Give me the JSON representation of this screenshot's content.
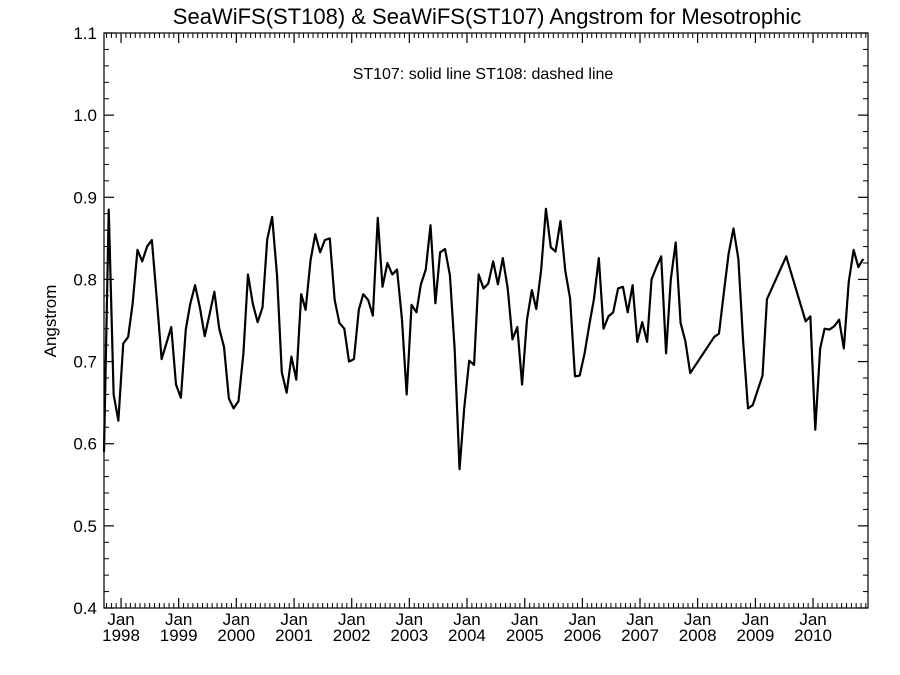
{
  "chart_data": {
    "type": "line",
    "title": "SeaWiFS(ST108) & SeaWiFS(ST107)  Angstrom for Mesotrophic",
    "annotation": "ST107: solid line   ST108: dashed line",
    "ylabel": "Angstrom",
    "xlabel": "",
    "ylim": [
      0.4,
      1.1
    ],
    "xlim": [
      "1997-09-15",
      "2010-12-15"
    ],
    "y_ticks": [
      "0.4",
      "0.5",
      "0.6",
      "0.7",
      "0.8",
      "0.9",
      "1.0",
      "1.1"
    ],
    "x_ticks": [
      {
        "month": "Jan",
        "year": "1998",
        "date": "1998-01-01"
      },
      {
        "month": "Jan",
        "year": "1999",
        "date": "1999-01-01"
      },
      {
        "month": "Jan",
        "year": "2000",
        "date": "2000-01-01"
      },
      {
        "month": "Jan",
        "year": "2001",
        "date": "2001-01-01"
      },
      {
        "month": "Jan",
        "year": "2002",
        "date": "2002-01-01"
      },
      {
        "month": "Jan",
        "year": "2003",
        "date": "2003-01-01"
      },
      {
        "month": "Jan",
        "year": "2004",
        "date": "2004-01-01"
      },
      {
        "month": "Jan",
        "year": "2005",
        "date": "2005-01-01"
      },
      {
        "month": "Jan",
        "year": "2006",
        "date": "2006-01-01"
      },
      {
        "month": "Jan",
        "year": "2007",
        "date": "2007-01-01"
      },
      {
        "month": "Jan",
        "year": "2008",
        "date": "2008-01-01"
      },
      {
        "month": "Jan",
        "year": "2009",
        "date": "2009-01-01"
      },
      {
        "month": "Jan",
        "year": "2010",
        "date": "2010-01-01"
      }
    ],
    "grid": false,
    "series": [
      {
        "line_style": "solid",
        "points": [
          [
            "1997-09",
            0.59
          ],
          [
            "1997-10",
            0.885
          ],
          [
            "1997-11",
            0.66
          ],
          [
            "1997-12",
            0.628
          ],
          [
            "1998-01",
            0.722
          ],
          [
            "1998-02",
            0.73
          ],
          [
            "1998-03",
            0.77
          ],
          [
            "1998-04",
            0.836
          ],
          [
            "1998-05",
            0.822
          ],
          [
            "1998-06",
            0.84
          ],
          [
            "1998-07",
            0.848
          ],
          [
            "1998-08",
            0.777
          ],
          [
            "1998-09",
            0.703
          ],
          [
            "1998-10",
            0.722
          ],
          [
            "1998-11",
            0.742
          ],
          [
            "1998-12",
            0.672
          ],
          [
            "1999-01",
            0.656
          ],
          [
            "1999-02",
            0.739
          ],
          [
            "1999-03",
            0.77
          ],
          [
            "1999-04",
            0.793
          ],
          [
            "1999-05",
            0.766
          ],
          [
            "1999-06",
            0.731
          ],
          [
            "1999-07",
            0.757
          ],
          [
            "1999-08",
            0.785
          ],
          [
            "1999-09",
            0.74
          ],
          [
            "1999-10",
            0.718
          ],
          [
            "1999-11",
            0.655
          ],
          [
            "1999-12",
            0.643
          ],
          [
            "2000-01",
            0.652
          ],
          [
            "2000-02",
            0.71
          ],
          [
            "2000-03",
            0.806
          ],
          [
            "2000-04",
            0.77
          ],
          [
            "2000-05",
            0.748
          ],
          [
            "2000-06",
            0.766
          ],
          [
            "2000-07",
            0.849
          ],
          [
            "2000-08",
            0.876
          ],
          [
            "2000-09",
            0.805
          ],
          [
            "2000-10",
            0.687
          ],
          [
            "2000-11",
            0.662
          ],
          [
            "2000-12",
            0.706
          ],
          [
            "2001-01",
            0.678
          ],
          [
            "2001-02",
            0.782
          ],
          [
            "2001-03",
            0.763
          ],
          [
            "2001-04",
            0.823
          ],
          [
            "2001-05",
            0.855
          ],
          [
            "2001-06",
            0.833
          ],
          [
            "2001-07",
            0.848
          ],
          [
            "2001-08",
            0.85
          ],
          [
            "2001-09",
            0.775
          ],
          [
            "2001-10",
            0.747
          ],
          [
            "2001-11",
            0.74
          ],
          [
            "2001-12",
            0.7
          ],
          [
            "2002-01",
            0.703
          ],
          [
            "2002-02",
            0.763
          ],
          [
            "2002-03",
            0.782
          ],
          [
            "2002-04",
            0.775
          ],
          [
            "2002-05",
            0.756
          ],
          [
            "2002-06",
            0.875
          ],
          [
            "2002-07",
            0.791
          ],
          [
            "2002-08",
            0.82
          ],
          [
            "2002-09",
            0.806
          ],
          [
            "2002-10",
            0.812
          ],
          [
            "2002-11",
            0.752
          ],
          [
            "2002-12",
            0.66
          ],
          [
            "2003-01",
            0.769
          ],
          [
            "2003-02",
            0.76
          ],
          [
            "2003-03",
            0.794
          ],
          [
            "2003-04",
            0.812
          ],
          [
            "2003-05",
            0.866
          ],
          [
            "2003-06",
            0.771
          ],
          [
            "2003-07",
            0.833
          ],
          [
            "2003-08",
            0.837
          ],
          [
            "2003-09",
            0.805
          ],
          [
            "2003-10",
            0.715
          ],
          [
            "2003-11",
            0.569
          ],
          [
            "2003-12",
            0.644
          ],
          [
            "2004-01",
            0.701
          ],
          [
            "2004-02",
            0.696
          ],
          [
            "2004-03",
            0.806
          ],
          [
            "2004-04",
            0.789
          ],
          [
            "2004-05",
            0.795
          ],
          [
            "2004-06",
            0.822
          ],
          [
            "2004-07",
            0.794
          ],
          [
            "2004-08",
            0.826
          ],
          [
            "2004-09",
            0.789
          ],
          [
            "2004-10",
            0.727
          ],
          [
            "2004-11",
            0.742
          ],
          [
            "2004-12",
            0.672
          ],
          [
            "2005-01",
            0.751
          ],
          [
            "2005-02",
            0.787
          ],
          [
            "2005-03",
            0.764
          ],
          [
            "2005-04",
            0.812
          ],
          [
            "2005-05",
            0.886
          ],
          [
            "2005-06",
            0.839
          ],
          [
            "2005-07",
            0.834
          ],
          [
            "2005-08",
            0.871
          ],
          [
            "2005-09",
            0.81
          ],
          [
            "2005-10",
            0.777
          ],
          [
            "2005-11",
            0.682
          ],
          [
            "2005-12",
            0.683
          ],
          [
            "2006-01",
            0.71
          ],
          [
            "2006-02",
            0.746
          ],
          [
            "2006-03",
            0.776
          ],
          [
            "2006-04",
            0.826
          ],
          [
            "2006-05",
            0.74
          ],
          [
            "2006-06",
            0.755
          ],
          [
            "2006-07",
            0.76
          ],
          [
            "2006-08",
            0.789
          ],
          [
            "2006-09",
            0.791
          ],
          [
            "2006-10",
            0.76
          ],
          [
            "2006-11",
            0.793
          ],
          [
            "2006-12",
            0.724
          ],
          [
            "2007-01",
            0.748
          ],
          [
            "2007-02",
            0.724
          ],
          [
            "2007-03",
            0.8
          ],
          [
            "2007-04",
            0.815
          ],
          [
            "2007-05",
            0.828
          ],
          [
            "2007-06",
            0.71
          ],
          [
            "2007-07",
            0.8
          ],
          [
            "2007-08",
            0.845
          ],
          [
            "2007-09",
            0.747
          ],
          [
            "2007-10",
            0.725
          ],
          [
            "2007-11",
            0.686
          ],
          [
            "2008-04",
            0.73
          ],
          [
            "2008-05",
            0.734
          ],
          [
            "2008-06",
            0.784
          ],
          [
            "2008-07",
            0.831
          ],
          [
            "2008-08",
            0.862
          ],
          [
            "2008-09",
            0.825
          ],
          [
            "2008-10",
            0.725
          ],
          [
            "2008-11",
            0.643
          ],
          [
            "2008-12",
            0.647
          ],
          [
            "2009-02",
            0.683
          ],
          [
            "2009-03",
            0.776
          ],
          [
            "2009-07",
            0.828
          ],
          [
            "2009-11",
            0.749
          ],
          [
            "2009-12",
            0.755
          ],
          [
            "2010-01",
            0.617
          ],
          [
            "2010-02",
            0.716
          ],
          [
            "2010-03",
            0.74
          ],
          [
            "2010-04",
            0.739
          ],
          [
            "2010-05",
            0.743
          ],
          [
            "2010-06",
            0.751
          ],
          [
            "2010-07",
            0.716
          ],
          [
            "2010-08",
            0.797
          ],
          [
            "2010-09",
            0.836
          ],
          [
            "2010-10",
            0.815
          ],
          [
            "2010-11",
            0.825
          ]
        ]
      }
    ]
  }
}
